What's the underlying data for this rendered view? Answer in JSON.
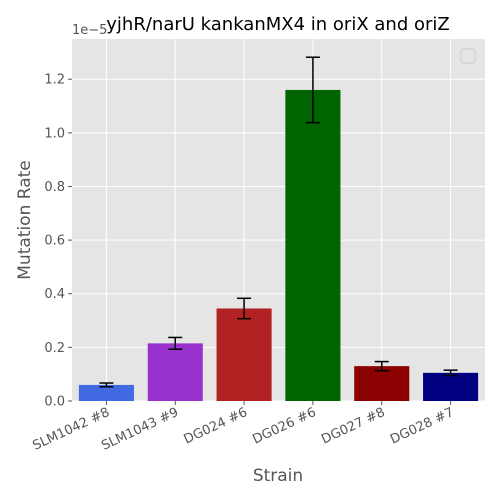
{
  "chart_data": {
    "type": "bar",
    "title": "yjhR/narU kankanMX4 in oriX and oriZ",
    "xlabel": "Strain",
    "ylabel": "Mutation Rate",
    "axis_offset_text": "1e−5",
    "ylim": [
      0,
      1.35
    ],
    "y_scale": "linear",
    "y_ticks": [
      0.0,
      0.2,
      0.4,
      0.6,
      0.8,
      1.0,
      1.2
    ],
    "y_tick_labels": [
      "0.0",
      "0.2",
      "0.4",
      "0.6",
      "0.8",
      "1.0",
      "1.2"
    ],
    "grid": true,
    "legend": {
      "position": "top-right",
      "entries": []
    },
    "categories": [
      "SLM1042 #8",
      "SLM1043 #9",
      "DG024 #6",
      "DG026 #6",
      "DG027 #8",
      "DG028 #7"
    ],
    "values": [
      0.06,
      0.215,
      0.345,
      1.16,
      0.13,
      0.105
    ],
    "errors": [
      0.007,
      0.022,
      0.038,
      0.122,
      0.017,
      0.01
    ],
    "colors": [
      "#4169e1",
      "#9932cc",
      "#b22222",
      "#006400",
      "#8b0000",
      "#000080"
    ]
  }
}
